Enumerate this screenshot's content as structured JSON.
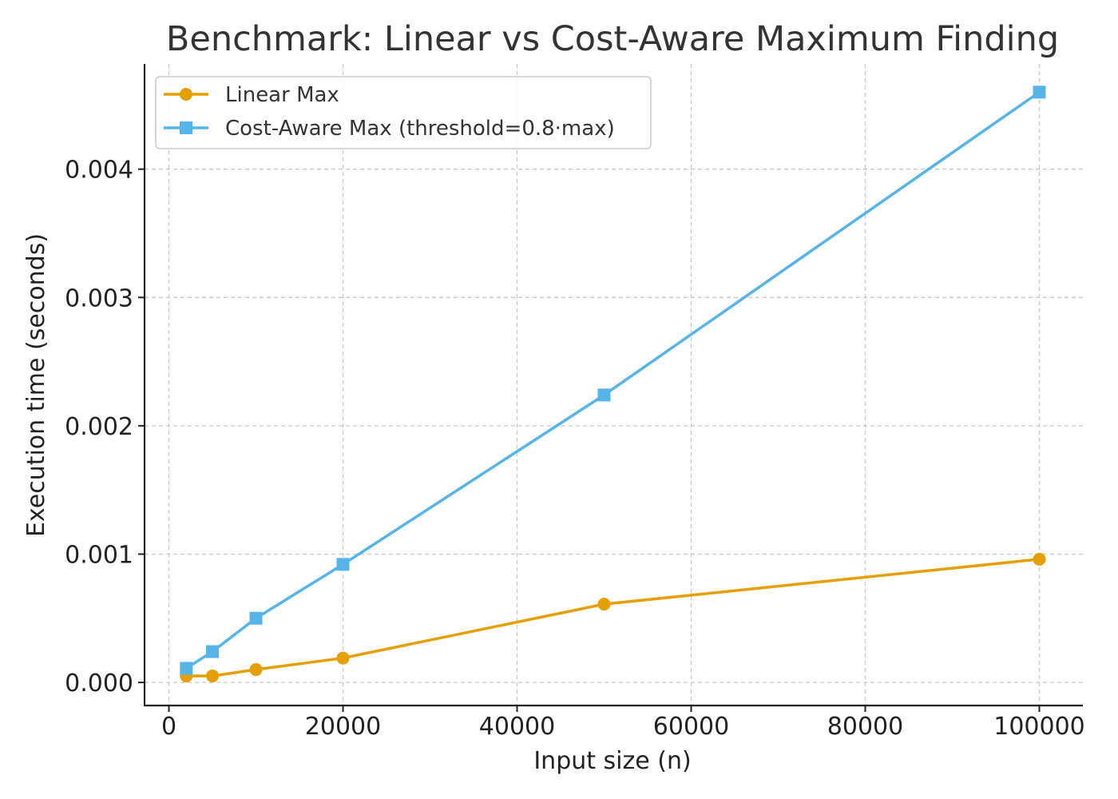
{
  "chart_data": {
    "type": "line",
    "title": "Benchmark: Linear vs Cost-Aware Maximum Finding",
    "xlabel": "Input size (n)",
    "ylabel": "Execution time (seconds)",
    "xlim": [
      -2800,
      105000
    ],
    "ylim": [
      -0.00018,
      0.00482
    ],
    "xticks": [
      0,
      20000,
      40000,
      60000,
      80000,
      100000
    ],
    "xtick_labels": [
      "0",
      "20000",
      "40000",
      "60000",
      "80000",
      "100000"
    ],
    "yticks": [
      0,
      0.001,
      0.002,
      0.003,
      0.004
    ],
    "ytick_labels": [
      "0.000",
      "0.001",
      "0.002",
      "0.003",
      "0.004"
    ],
    "grid": true,
    "legend_position": "top-left",
    "x": [
      2000,
      5000,
      10000,
      20000,
      50000,
      100000
    ],
    "series": [
      {
        "name": "Linear Max",
        "marker": "circle",
        "color": "#E69F00",
        "values": [
          5e-05,
          5e-05,
          0.0001,
          0.00019,
          0.00061,
          0.00096
        ]
      },
      {
        "name": "Cost-Aware Max (threshold=0.8·max)",
        "marker": "square",
        "color": "#56B4E9",
        "values": [
          0.00011,
          0.00024,
          0.0005,
          0.00092,
          0.00224,
          0.0046
        ]
      }
    ]
  }
}
